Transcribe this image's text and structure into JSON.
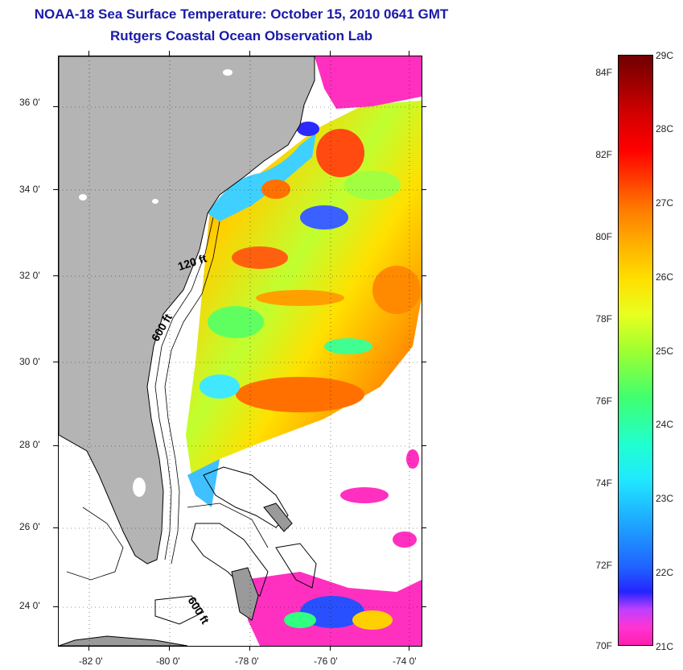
{
  "header": {
    "title": "NOAA-18 Sea Surface Temperature:  October 15, 2010 0641 GMT",
    "subtitle": "Rutgers Coastal Ocean Observation Lab"
  },
  "map": {
    "lat_labels": [
      "36 0'",
      "34 0'",
      "32 0'",
      "30 0'",
      "28 0'",
      "26 0'",
      "24 0'"
    ],
    "lon_labels": [
      "-82 0'",
      "-80 0'",
      "-78 0'",
      "-76 0'",
      "-74 0'"
    ],
    "contour_labels": [
      "120 ft",
      "600 ft",
      "600 ft"
    ],
    "land_color": "#b4b4b4"
  },
  "colorbar": {
    "fahrenheit_labels": [
      "84F",
      "82F",
      "80F",
      "78F",
      "76F",
      "74F",
      "72F",
      "70F"
    ],
    "celsius_labels": [
      "29C",
      "28C",
      "27C",
      "26C",
      "25C",
      "24C",
      "23C",
      "22C",
      "21C"
    ]
  }
}
